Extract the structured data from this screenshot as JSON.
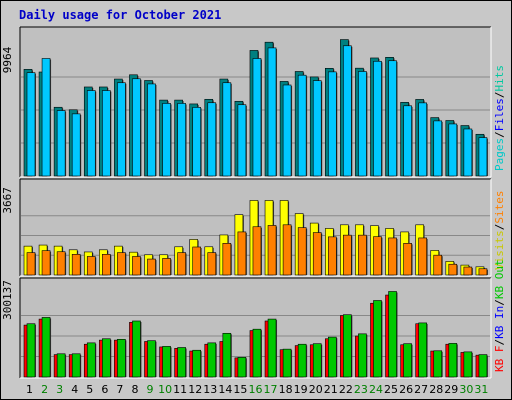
{
  "chart_data": {
    "type": "bar",
    "title": "Daily usage for October 2021",
    "categories": [
      "1",
      "2",
      "3",
      "4",
      "5",
      "6",
      "7",
      "8",
      "9",
      "10",
      "11",
      "12",
      "13",
      "14",
      "15",
      "16",
      "17",
      "18",
      "19",
      "20",
      "21",
      "22",
      "23",
      "24",
      "25",
      "26",
      "27",
      "28",
      "29",
      "30",
      "31"
    ],
    "weekend_days": [
      "2",
      "3",
      "9",
      "10",
      "16",
      "17",
      "23",
      "24",
      "30",
      "31"
    ],
    "panels": [
      {
        "name": "hits-files-pages",
        "max_label": "9964",
        "ymax": 9964,
        "legend": [
          {
            "text": "Pages",
            "color": "#00c8c8"
          },
          {
            "text": "/",
            "color": "#000000"
          },
          {
            "text": "Files",
            "color": "#0000ff"
          },
          {
            "text": "/",
            "color": "#000000"
          },
          {
            "text": "Hits",
            "color": "#00c8a0"
          }
        ],
        "series": [
          {
            "name": "Hits",
            "color": "#008080",
            "values": [
              8050,
              7850,
              5190,
              5000,
              6720,
              6720,
              7320,
              7640,
              7210,
              5730,
              5730,
              5440,
              5790,
              7320,
              5640,
              9480,
              10100,
              7140,
              7890,
              7480,
              8130,
              10300,
              8140,
              8910,
              8960,
              5560,
              5780,
              4410,
              4190,
              3810,
              3150
            ]
          },
          {
            "name": "Files",
            "color": "#00c8ff",
            "values": [
              7800,
              8870,
              4940,
              4690,
              6450,
              6450,
              7040,
              7340,
              6950,
              5480,
              5480,
              5180,
              5530,
              7040,
              5380,
              8870,
              9670,
              6870,
              7610,
              7200,
              7860,
              9830,
              7890,
              8660,
              8700,
              5300,
              5520,
              4160,
              3930,
              3550,
              2900
            ]
          }
        ]
      },
      {
        "name": "visits-sites",
        "max_label": "3667",
        "ymax": 3667,
        "legend": [
          {
            "text": "Visits",
            "color": "#c8c800"
          },
          {
            "text": "/",
            "color": "#000000"
          },
          {
            "text": "Sites",
            "color": "#ff8000"
          }
        ],
        "series": [
          {
            "name": "Visits",
            "color": "#ffff00",
            "values": [
              1340,
              1390,
              1340,
              1170,
              1070,
              1170,
              1340,
              1060,
              940,
              940,
              1310,
              1650,
              1310,
              1860,
              2800,
              3460,
              3460,
              3460,
              2850,
              2410,
              2160,
              2330,
              2330,
              2290,
              2160,
              2000,
              2330,
              1140,
              630,
              460,
              380
            ]
          },
          {
            "name": "Sites",
            "color": "#ff8000",
            "values": [
              1040,
              1130,
              1080,
              960,
              860,
              960,
              1040,
              860,
              740,
              770,
              1040,
              1300,
              1040,
              1470,
              2000,
              2240,
              2300,
              2330,
              2200,
              1970,
              1770,
              1850,
              1850,
              1780,
              1720,
              1470,
              1720,
              920,
              500,
              370,
              290
            ]
          }
        ]
      },
      {
        "name": "kbytes",
        "max_label": "300137",
        "ymax": 300137,
        "legend": [
          {
            "text": "KB F",
            "color": "#ff0000"
          },
          {
            "text": "/",
            "color": "#000000"
          },
          {
            "text": "KB In",
            "color": "#0000ff"
          },
          {
            "text": "/",
            "color": "#000000"
          },
          {
            "text": "KB Out",
            "color": "#00c800"
          }
        ],
        "series": [
          {
            "name": "KB F",
            "color": "#ff0000",
            "values": [
              190000,
              212000,
              82000,
              82000,
              120000,
              135000,
              135000,
              200000,
              130000,
              110000,
              105000,
              95000,
              120000,
              130000,
              70000,
              170000,
              205000,
              100000,
              115000,
              118000,
              140000,
              225000,
              150000,
              270000,
              300000,
              118000,
              195000,
              95000,
              120000,
              90000,
              80000
            ]
          },
          {
            "name": "KB Out",
            "color": "#00c800",
            "values": [
              195000,
              218000,
              85000,
              85000,
              125000,
              140000,
              138000,
              205000,
              133000,
              112000,
              108000,
              98000,
              125000,
              160000,
              72000,
              175000,
              212000,
              102000,
              120000,
              122000,
              146000,
              228000,
              158000,
              280000,
              313000,
              122000,
              198000,
              96000,
              123000,
              92000,
              82000
            ]
          }
        ]
      }
    ]
  }
}
